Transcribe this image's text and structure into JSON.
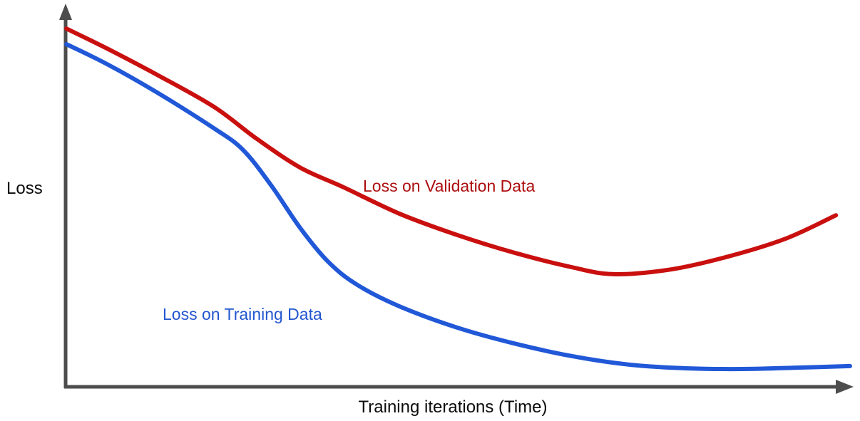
{
  "chart_data": {
    "type": "line",
    "title": "",
    "xlabel": "Training iterations (Time)",
    "ylabel": "Loss",
    "xlim": [
      0,
      1
    ],
    "ylim": [
      0,
      1
    ],
    "grid": false,
    "ticks": false,
    "legend_position": "inline-labels-on-curves",
    "axis_color": "#4d4d4d",
    "note": "Conceptual overfitting chart: axes are unlabeled arrows; values are normalized 0-1 estimates",
    "series": [
      {
        "name": "Loss on Validation Data",
        "color": "#c9100f",
        "label_color": "#ad0d0e",
        "x": [
          0.001,
          0.053,
          0.117,
          0.189,
          0.244,
          0.299,
          0.353,
          0.426,
          0.499,
          0.572,
          0.645,
          0.699,
          0.772,
          0.845,
          0.918,
          0.982
        ],
        "y": [
          0.967,
          0.913,
          0.842,
          0.756,
          0.669,
          0.592,
          0.54,
          0.467,
          0.41,
          0.362,
          0.323,
          0.304,
          0.317,
          0.352,
          0.4,
          0.463
        ]
      },
      {
        "name": "Loss on Training Data",
        "color": "#2158d8",
        "label_color": "#2356d0",
        "x": [
          0.001,
          0.053,
          0.117,
          0.189,
          0.226,
          0.262,
          0.299,
          0.335,
          0.372,
          0.426,
          0.499,
          0.572,
          0.645,
          0.718,
          0.79,
          0.863,
          0.936,
          1.0
        ],
        "y": [
          0.925,
          0.871,
          0.794,
          0.698,
          0.64,
          0.544,
          0.429,
          0.337,
          0.275,
          0.217,
          0.16,
          0.117,
          0.083,
          0.06,
          0.05,
          0.048,
          0.052,
          0.056
        ]
      }
    ]
  }
}
